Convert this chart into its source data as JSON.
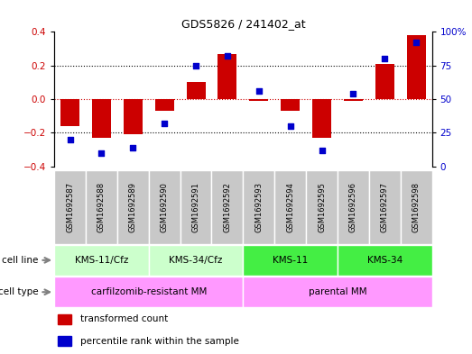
{
  "title": "GDS5826 / 241402_at",
  "samples": [
    "GSM1692587",
    "GSM1692588",
    "GSM1692589",
    "GSM1692590",
    "GSM1692591",
    "GSM1692592",
    "GSM1692593",
    "GSM1692594",
    "GSM1692595",
    "GSM1692596",
    "GSM1692597",
    "GSM1692598"
  ],
  "transformed_count": [
    -0.16,
    -0.23,
    -0.21,
    -0.07,
    0.1,
    0.27,
    -0.01,
    -0.07,
    -0.23,
    -0.01,
    0.21,
    0.38
  ],
  "percentile_rank": [
    20,
    10,
    14,
    32,
    75,
    82,
    56,
    30,
    12,
    54,
    80,
    92
  ],
  "cell_line_labels": [
    "KMS-11/Cfz",
    "KMS-34/Cfz",
    "KMS-11",
    "KMS-34"
  ],
  "cell_line_ranges": [
    [
      0,
      3
    ],
    [
      3,
      6
    ],
    [
      6,
      9
    ],
    [
      9,
      12
    ]
  ],
  "cell_line_colors": [
    "#CCFFCC",
    "#CCFFCC",
    "#44EE44",
    "#44EE44"
  ],
  "cell_type_labels": [
    "carfilzomib-resistant MM",
    "parental MM"
  ],
  "cell_type_ranges": [
    [
      0,
      6
    ],
    [
      6,
      12
    ]
  ],
  "cell_type_color": "#FF99FF",
  "bar_color": "#CC0000",
  "dot_color": "#0000CC",
  "ylim_left": [
    -0.4,
    0.4
  ],
  "ylim_right": [
    0,
    100
  ],
  "yticks_left": [
    -0.4,
    -0.2,
    0.0,
    0.2,
    0.4
  ],
  "yticks_right": [
    0,
    25,
    50,
    75,
    100
  ],
  "ytick_labels_right": [
    "0",
    "25",
    "50",
    "75",
    "100%"
  ],
  "legend_items": [
    {
      "label": "transformed count",
      "color": "#CC0000"
    },
    {
      "label": "percentile rank within the sample",
      "color": "#0000CC"
    }
  ],
  "cell_line_label": "cell line",
  "cell_type_label": "cell type",
  "sample_box_color": "#C8C8C8",
  "background_color": "#FFFFFF"
}
